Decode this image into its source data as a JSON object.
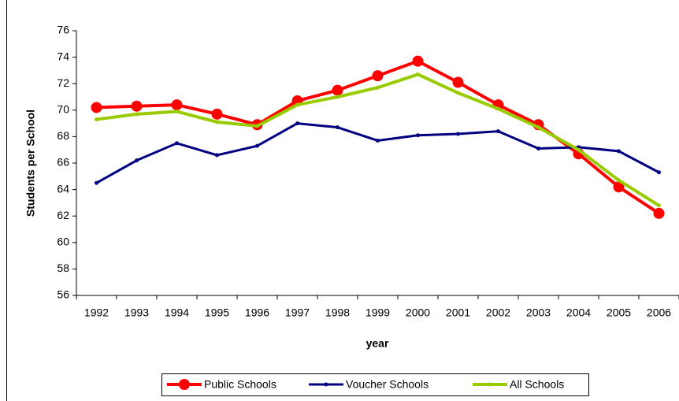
{
  "chart_data": {
    "type": "line",
    "x_label": "year",
    "y_label": "Students per School",
    "categories": [
      "1992",
      "1993",
      "1994",
      "1995",
      "1996",
      "1997",
      "1998",
      "1999",
      "2000",
      "2001",
      "2002",
      "2003",
      "2004",
      "2005",
      "2006"
    ],
    "series": [
      {
        "name": "Public Schools",
        "color": "#ff0000",
        "values": [
          70.2,
          70.3,
          70.4,
          69.7,
          68.9,
          70.7,
          71.5,
          72.6,
          73.7,
          72.1,
          70.4,
          68.9,
          66.7,
          64.2,
          62.2
        ]
      },
      {
        "name": "Voucher Schools",
        "color": "#000080",
        "values": [
          64.5,
          66.2,
          67.5,
          66.6,
          67.3,
          69.0,
          68.7,
          67.7,
          68.1,
          68.2,
          68.4,
          67.1,
          67.2,
          66.9,
          65.3
        ]
      },
      {
        "name": "All Schools",
        "color": "#99cc00",
        "values": [
          69.3,
          69.7,
          69.9,
          69.1,
          68.8,
          70.4,
          71.0,
          71.7,
          72.7,
          71.3,
          70.1,
          68.7,
          67.0,
          64.7,
          62.8
        ]
      }
    ],
    "ylim": [
      56,
      76
    ],
    "yticks": [
      56,
      58,
      60,
      62,
      64,
      66,
      68,
      70,
      72,
      74,
      76
    ],
    "grid": false
  }
}
